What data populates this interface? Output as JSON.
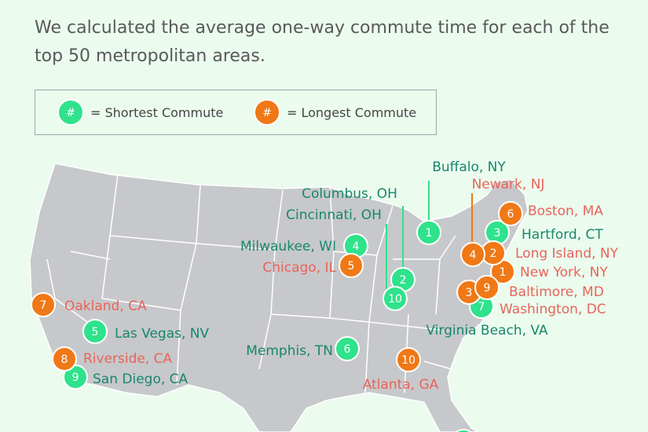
{
  "intro": "We calculated the average one-way commute time for each of the top 50 metropolitan areas.",
  "legend": {
    "items": [
      {
        "symbol": "#",
        "label": "= Shortest Commute",
        "color": "#2fe28c"
      },
      {
        "symbol": "#",
        "label": "= Longest Commute",
        "color": "#f07816"
      }
    ]
  },
  "shortest": [
    {
      "rank": 1,
      "city": "Buffalo, NY"
    },
    {
      "rank": 2,
      "city": "Columbus, OH"
    },
    {
      "rank": 3,
      "city": "Hartford, CT"
    },
    {
      "rank": 4,
      "city": "Milwaukee, WI"
    },
    {
      "rank": 5,
      "city": "Las Vegas, NV"
    },
    {
      "rank": 6,
      "city": "Memphis, TN"
    },
    {
      "rank": 7,
      "city": "Virginia Beach, VA"
    },
    {
      "rank": 9,
      "city": "San Diego, CA"
    },
    {
      "rank": 10,
      "city": "Cincinnati, OH"
    }
  ],
  "longest": [
    {
      "rank": 1,
      "city": "New York, NY"
    },
    {
      "rank": 2,
      "city": "Long Island, NY"
    },
    {
      "rank": 3,
      "city": "Baltimore, MD"
    },
    {
      "rank": 4,
      "city": "Newark, NJ"
    },
    {
      "rank": 5,
      "city": "Chicago, IL"
    },
    {
      "rank": 6,
      "city": "Boston, MA"
    },
    {
      "rank": 7,
      "city": "Oakland, CA"
    },
    {
      "rank": 8,
      "city": "Riverside, CA"
    },
    {
      "rank": 9,
      "city": "Washington, DC"
    },
    {
      "rank": 10,
      "city": "Atlanta, GA"
    }
  ]
}
